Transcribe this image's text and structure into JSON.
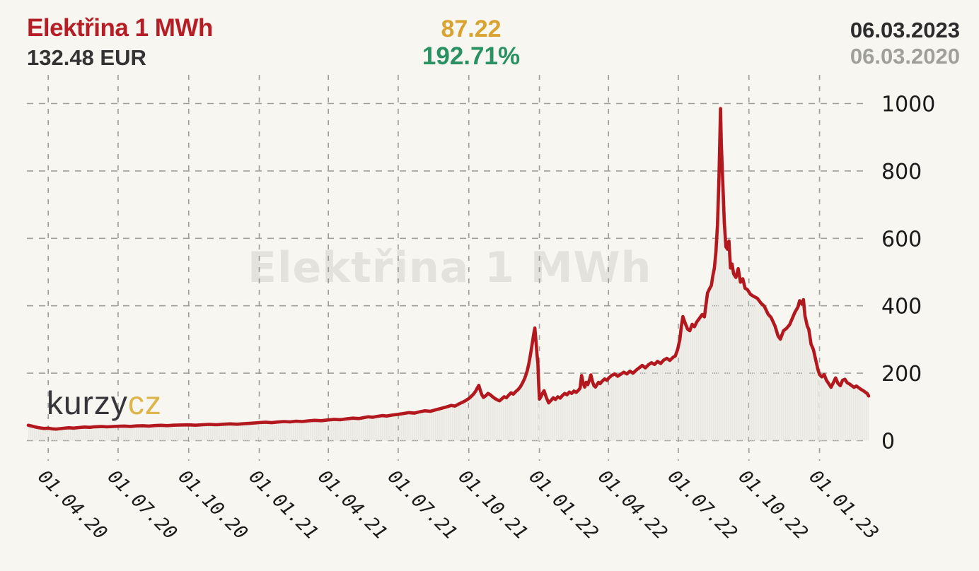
{
  "header": {
    "title": "Elektřina 1 MWh",
    "current_price": "132.48 EUR",
    "change_absolute": "87.22",
    "change_percent": "192.71%",
    "date_to": "06.03.2023",
    "date_from": "06.03.2020"
  },
  "watermark": "Elektřina 1 MWh",
  "logo": {
    "main": "kurzy",
    "suffix": "cz"
  },
  "colors": {
    "background": "#f7f6f0",
    "line": "#b2181e",
    "title_red": "#b41e24",
    "gold": "#d9a331",
    "green": "#2a9162",
    "date_dark": "#2b2b2b",
    "date_gray": "#a0a09b",
    "grid": "#909090",
    "watermark": "#e3e2dd",
    "area_stripe": "#e8e7e1",
    "axis_text": "#1a1a1a"
  },
  "chart_data": {
    "type": "line",
    "title": "Elektřina 1 MWh",
    "unit": "EUR",
    "grid": "dashed",
    "legend_position": "none",
    "x_range_days": [
      0,
      1095
    ],
    "x_start_date": "06.03.2020",
    "x_end_date": "06.03.2023",
    "ylim": [
      0,
      1100
    ],
    "y_ticks": [
      0,
      200,
      400,
      600,
      800,
      1000
    ],
    "y_tick_labels": [
      "0",
      "200",
      "400",
      "600",
      "800",
      "1000"
    ],
    "x_tick_days": [
      26,
      117,
      209,
      301,
      391,
      482,
      574,
      666,
      756,
      847,
      939,
      1031
    ],
    "x_tick_labels": [
      "01.04.20",
      "01.07.20",
      "01.10.20",
      "01.01.21",
      "01.04.21",
      "01.07.21",
      "01.10.21",
      "01.01.22",
      "01.04.22",
      "01.07.22",
      "01.10.22",
      "01.01.23"
    ],
    "series": [
      {
        "name": "Elektřina 1 MWh",
        "points": [
          [
            0,
            45.5
          ],
          [
            4,
            43.5
          ],
          [
            8,
            41
          ],
          [
            12,
            39
          ],
          [
            16,
            37.5
          ],
          [
            21,
            36
          ],
          [
            26,
            36.8
          ],
          [
            31,
            35
          ],
          [
            36,
            34.2
          ],
          [
            41,
            35.5
          ],
          [
            47,
            37
          ],
          [
            53,
            38.2
          ],
          [
            59,
            37.2
          ],
          [
            66,
            38.8
          ],
          [
            73,
            40.2
          ],
          [
            80,
            39.5
          ],
          [
            87,
            41
          ],
          [
            95,
            41.8
          ],
          [
            103,
            40.8
          ],
          [
            111,
            42
          ],
          [
            117,
            42.6
          ],
          [
            125,
            43.2
          ],
          [
            133,
            42.2
          ],
          [
            141,
            43.6
          ],
          [
            149,
            44.2
          ],
          [
            157,
            43.2
          ],
          [
            165,
            44.6
          ],
          [
            173,
            45.4
          ],
          [
            181,
            44.4
          ],
          [
            189,
            45.8
          ],
          [
            197,
            46.4
          ],
          [
            209,
            46.8
          ],
          [
            218,
            45.8
          ],
          [
            227,
            47.2
          ],
          [
            236,
            48.2
          ],
          [
            245,
            47.2
          ],
          [
            254,
            48.6
          ],
          [
            263,
            49.6
          ],
          [
            272,
            48.6
          ],
          [
            281,
            50.2
          ],
          [
            290,
            51.6
          ],
          [
            301,
            53.5
          ],
          [
            309,
            54.8
          ],
          [
            317,
            53.2
          ],
          [
            325,
            55.2
          ],
          [
            333,
            56.6
          ],
          [
            341,
            55.6
          ],
          [
            349,
            57.6
          ],
          [
            357,
            56.6
          ],
          [
            365,
            58.8
          ],
          [
            373,
            60.2
          ],
          [
            382,
            59.2
          ],
          [
            391,
            61.5
          ],
          [
            399,
            63.2
          ],
          [
            407,
            62
          ],
          [
            415,
            64.6
          ],
          [
            423,
            66.6
          ],
          [
            431,
            65.4
          ],
          [
            437,
            68.2
          ],
          [
            443,
            70.6
          ],
          [
            449,
            69.4
          ],
          [
            455,
            72.2
          ],
          [
            461,
            74.2
          ],
          [
            467,
            73
          ],
          [
            474,
            75.6
          ],
          [
            482,
            78
          ],
          [
            489,
            80.5
          ],
          [
            496,
            83
          ],
          [
            503,
            81.5
          ],
          [
            510,
            85.5
          ],
          [
            517,
            88.5
          ],
          [
            524,
            87
          ],
          [
            531,
            91.5
          ],
          [
            538,
            95.5
          ],
          [
            545,
            100
          ],
          [
            551,
            104.5
          ],
          [
            556,
            102.5
          ],
          [
            561,
            108.5
          ],
          [
            566,
            114
          ],
          [
            570,
            119
          ],
          [
            574,
            125
          ],
          [
            577,
            131
          ],
          [
            580,
            138
          ],
          [
            583,
            147
          ],
          [
            585,
            156
          ],
          [
            587,
            164
          ],
          [
            589,
            149
          ],
          [
            591,
            136
          ],
          [
            593,
            128
          ],
          [
            596,
            133
          ],
          [
            599,
            140
          ],
          [
            602,
            136
          ],
          [
            605,
            130
          ],
          [
            608,
            125
          ],
          [
            611,
            121
          ],
          [
            614,
            118
          ],
          [
            617,
            124
          ],
          [
            620,
            130
          ],
          [
            623,
            127
          ],
          [
            626,
            135
          ],
          [
            629,
            142
          ],
          [
            632,
            138
          ],
          [
            635,
            145
          ],
          [
            638,
            151
          ],
          [
            641,
            159
          ],
          [
            644,
            171
          ],
          [
            647,
            186
          ],
          [
            650,
            206
          ],
          [
            652,
            226
          ],
          [
            654,
            250
          ],
          [
            656,
            278
          ],
          [
            658,
            308
          ],
          [
            659,
            322
          ],
          [
            660,
            334
          ],
          [
            661,
            310
          ],
          [
            662,
            282
          ],
          [
            663,
            252
          ],
          [
            664,
            230
          ],
          [
            665,
            170
          ],
          [
            666,
            123
          ],
          [
            668,
            130
          ],
          [
            670,
            140
          ],
          [
            672,
            148
          ],
          [
            675,
            128
          ],
          [
            678,
            112
          ],
          [
            681,
            119
          ],
          [
            684,
            127
          ],
          [
            687,
            122
          ],
          [
            690,
            130
          ],
          [
            693,
            126
          ],
          [
            696,
            134
          ],
          [
            699,
            140
          ],
          [
            702,
            136
          ],
          [
            705,
            144
          ],
          [
            708,
            140
          ],
          [
            711,
            147
          ],
          [
            714,
            143
          ],
          [
            717,
            150
          ],
          [
            719,
            156
          ],
          [
            721,
            193
          ],
          [
            723,
            170
          ],
          [
            725,
            159
          ],
          [
            727,
            173
          ],
          [
            729,
            166
          ],
          [
            731,
            179
          ],
          [
            733,
            195
          ],
          [
            735,
            177
          ],
          [
            737,
            163
          ],
          [
            739,
            159
          ],
          [
            741,
            166
          ],
          [
            743,
            173
          ],
          [
            745,
            169
          ],
          [
            748,
            177
          ],
          [
            751,
            183
          ],
          [
            754,
            179
          ],
          [
            756,
            185
          ],
          [
            760,
            193
          ],
          [
            764,
            198
          ],
          [
            768,
            191
          ],
          [
            772,
            197
          ],
          [
            776,
            203
          ],
          [
            780,
            198
          ],
          [
            784,
            206
          ],
          [
            788,
            200
          ],
          [
            792,
            209
          ],
          [
            796,
            216
          ],
          [
            800,
            223
          ],
          [
            804,
            216
          ],
          [
            808,
            225
          ],
          [
            812,
            231
          ],
          [
            816,
            226
          ],
          [
            820,
            235
          ],
          [
            824,
            229
          ],
          [
            828,
            239
          ],
          [
            832,
            244
          ],
          [
            836,
            238
          ],
          [
            840,
            247
          ],
          [
            843,
            251
          ],
          [
            846,
            270
          ],
          [
            849,
            300
          ],
          [
            851,
            340
          ],
          [
            853,
            368
          ],
          [
            856,
            348
          ],
          [
            859,
            331
          ],
          [
            862,
            326
          ],
          [
            865,
            345
          ],
          [
            868,
            338
          ],
          [
            871,
            352
          ],
          [
            874,
            361
          ],
          [
            878,
            374
          ],
          [
            881,
            367
          ],
          [
            885,
            438
          ],
          [
            888,
            452
          ],
          [
            890,
            460
          ],
          [
            892,
            490
          ],
          [
            894,
            512
          ],
          [
            896,
            560
          ],
          [
            898,
            640
          ],
          [
            900,
            780
          ],
          [
            902,
            985
          ],
          [
            903,
            880
          ],
          [
            905,
            760
          ],
          [
            907,
            645
          ],
          [
            909,
            575
          ],
          [
            911,
            568
          ],
          [
            913,
            592
          ],
          [
            915,
            512
          ],
          [
            917,
            524
          ],
          [
            919,
            495
          ],
          [
            922,
            484
          ],
          [
            925,
            510
          ],
          [
            928,
            470
          ],
          [
            931,
            480
          ],
          [
            934,
            452
          ],
          [
            937,
            448
          ],
          [
            941,
            434
          ],
          [
            945,
            428
          ],
          [
            950,
            422
          ],
          [
            955,
            407
          ],
          [
            959,
            399
          ],
          [
            964,
            375
          ],
          [
            968,
            365
          ],
          [
            973,
            340
          ],
          [
            977,
            310
          ],
          [
            980,
            301
          ],
          [
            984,
            326
          ],
          [
            988,
            333
          ],
          [
            992,
            344
          ],
          [
            995,
            360
          ],
          [
            999,
            381
          ],
          [
            1003,
            397
          ],
          [
            1005,
            415
          ],
          [
            1008,
            405
          ],
          [
            1010,
            418
          ],
          [
            1012,
            370
          ],
          [
            1015,
            340
          ],
          [
            1017,
            330
          ],
          [
            1020,
            286
          ],
          [
            1023,
            270
          ],
          [
            1026,
            240
          ],
          [
            1029,
            210
          ],
          [
            1031,
            196
          ],
          [
            1034,
            189
          ],
          [
            1037,
            196
          ],
          [
            1040,
            179
          ],
          [
            1043,
            169
          ],
          [
            1046,
            158
          ],
          [
            1049,
            172
          ],
          [
            1052,
            186
          ],
          [
            1055,
            170
          ],
          [
            1058,
            163
          ],
          [
            1061,
            179
          ],
          [
            1064,
            182
          ],
          [
            1067,
            172
          ],
          [
            1070,
            168
          ],
          [
            1073,
            163
          ],
          [
            1076,
            158
          ],
          [
            1079,
            162
          ],
          [
            1082,
            157
          ],
          [
            1085,
            152
          ],
          [
            1088,
            148
          ],
          [
            1091,
            143
          ],
          [
            1093,
            140
          ],
          [
            1095,
            132.5
          ]
        ]
      }
    ]
  }
}
